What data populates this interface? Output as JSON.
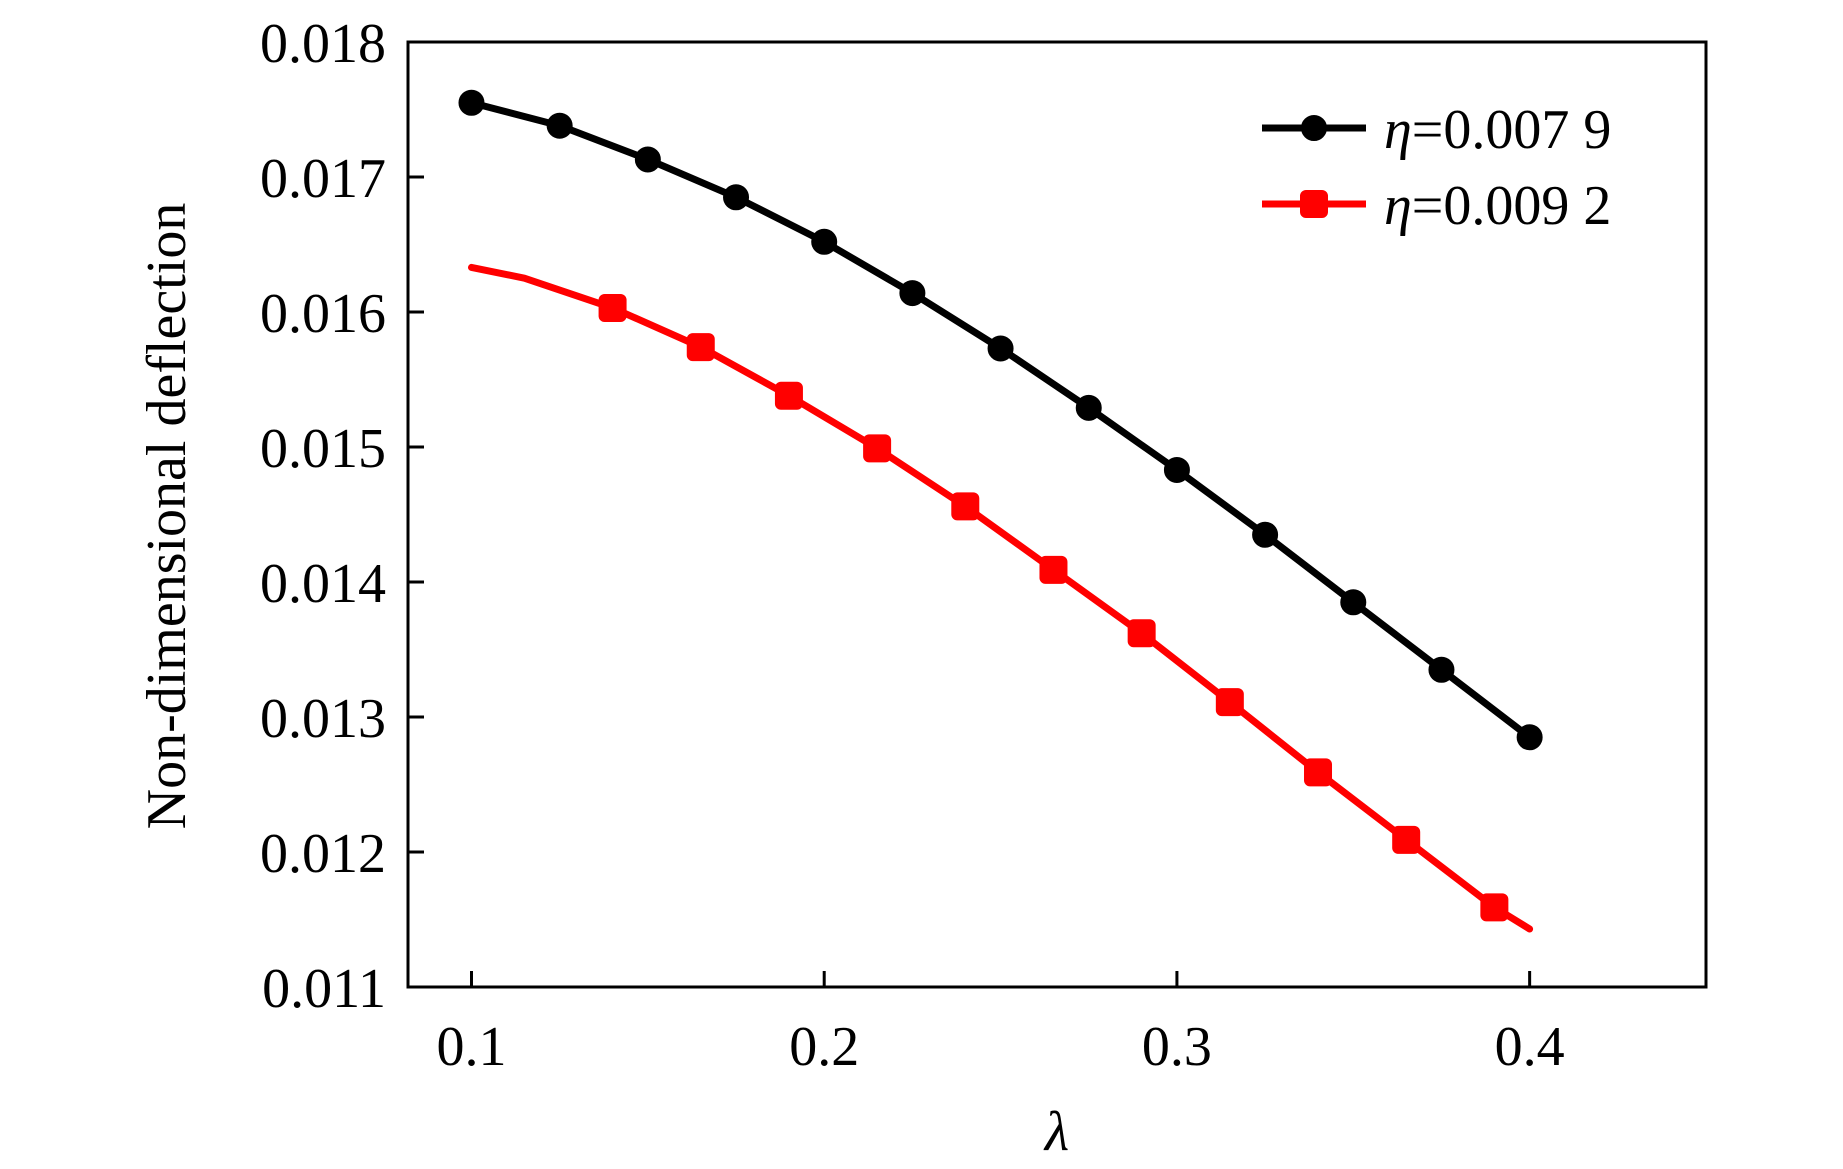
{
  "chart_data": {
    "type": "line",
    "title": "",
    "xlabel": "λ",
    "ylabel": "Non-dimensional deflection",
    "xlim": [
      0.082,
      0.45
    ],
    "ylim": [
      0.011,
      0.018
    ],
    "x_ticks": [
      0.1,
      0.2,
      0.3,
      0.4
    ],
    "x_tick_labels": [
      "0.1",
      "0.2",
      "0.3",
      "0.4"
    ],
    "y_ticks": [
      0.011,
      0.012,
      0.013,
      0.014,
      0.015,
      0.016,
      0.017,
      0.018
    ],
    "y_tick_labels": [
      "0.011",
      "0.012",
      "0.013",
      "0.014",
      "0.015",
      "0.016",
      "0.017",
      "0.018"
    ],
    "grid": false,
    "legend_position": "top-right",
    "series": [
      {
        "name": "η=0.007 9",
        "legend_symbol": "η",
        "legend_value": "=0.007 9",
        "color": "#000000",
        "marker": "circle",
        "x": [
          0.1,
          0.125,
          0.15,
          0.175,
          0.2,
          0.225,
          0.25,
          0.275,
          0.3,
          0.325,
          0.35,
          0.375,
          0.4
        ],
        "y": [
          0.01755,
          0.01738,
          0.01713,
          0.01685,
          0.01652,
          0.01614,
          0.01573,
          0.01529,
          0.01483,
          0.01435,
          0.01385,
          0.01335,
          0.01285
        ]
      },
      {
        "name": "η=0.009 2",
        "legend_symbol": "η",
        "legend_value": "=0.009 2",
        "color": "#ff0000",
        "marker": "square",
        "x": [
          0.1,
          0.115,
          0.14,
          0.165,
          0.19,
          0.215,
          0.24,
          0.265,
          0.29,
          0.315,
          0.34,
          0.365,
          0.39,
          0.4
        ],
        "y": [
          0.01633,
          0.01625,
          0.01603,
          0.01574,
          0.01538,
          0.01499,
          0.01456,
          0.01409,
          0.01362,
          0.01311,
          0.01259,
          0.01209,
          0.01159,
          0.01143
        ],
        "marker_indices": [
          2,
          3,
          4,
          5,
          6,
          7,
          8,
          9,
          10,
          11,
          12
        ]
      }
    ]
  }
}
